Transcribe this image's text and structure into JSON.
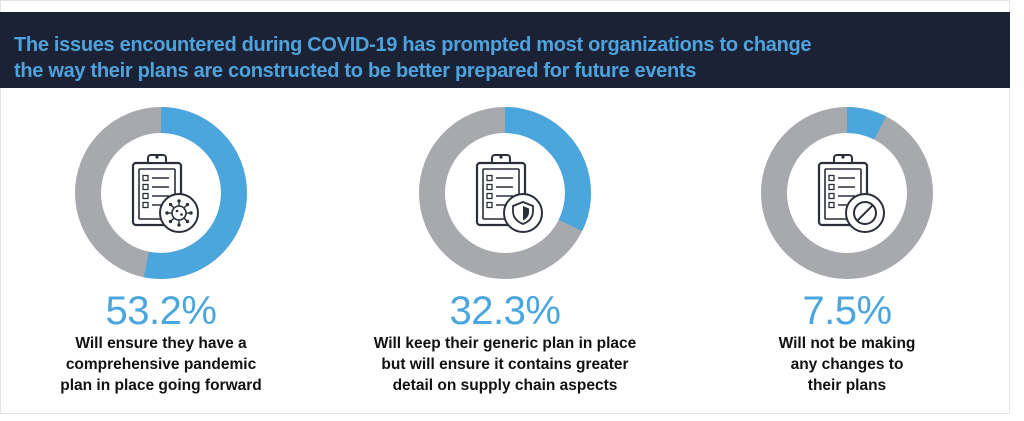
{
  "header": {
    "line1": "The issues encountered during COVID-19 has prompted most organizations to change",
    "line2": "the way their plans are constructed to be better prepared for future events"
  },
  "colors": {
    "header_bg": "#1b2235",
    "header_text": "#4fa3dc",
    "accent": "#4ba6dd",
    "remainder": "#a7a9ac",
    "icon": "#2b2f3a"
  },
  "chart_data": {
    "type": "pie",
    "variant": "donut",
    "items": [
      {
        "value": 53.2,
        "label": "53.2%",
        "icon": "virus-icon",
        "lines": [
          "Will ensure they have a",
          "comprehensive pandemic",
          "plan in place going forward"
        ]
      },
      {
        "value": 32.3,
        "label": "32.3%",
        "icon": "shield-icon",
        "lines": [
          "Will keep their generic plan in place",
          "but will ensure it contains greater",
          "detail on supply chain aspects"
        ]
      },
      {
        "value": 7.5,
        "label": "7.5%",
        "icon": "prohibited-icon",
        "lines": [
          "Will not be making",
          "any changes to",
          "their plans"
        ]
      }
    ]
  }
}
